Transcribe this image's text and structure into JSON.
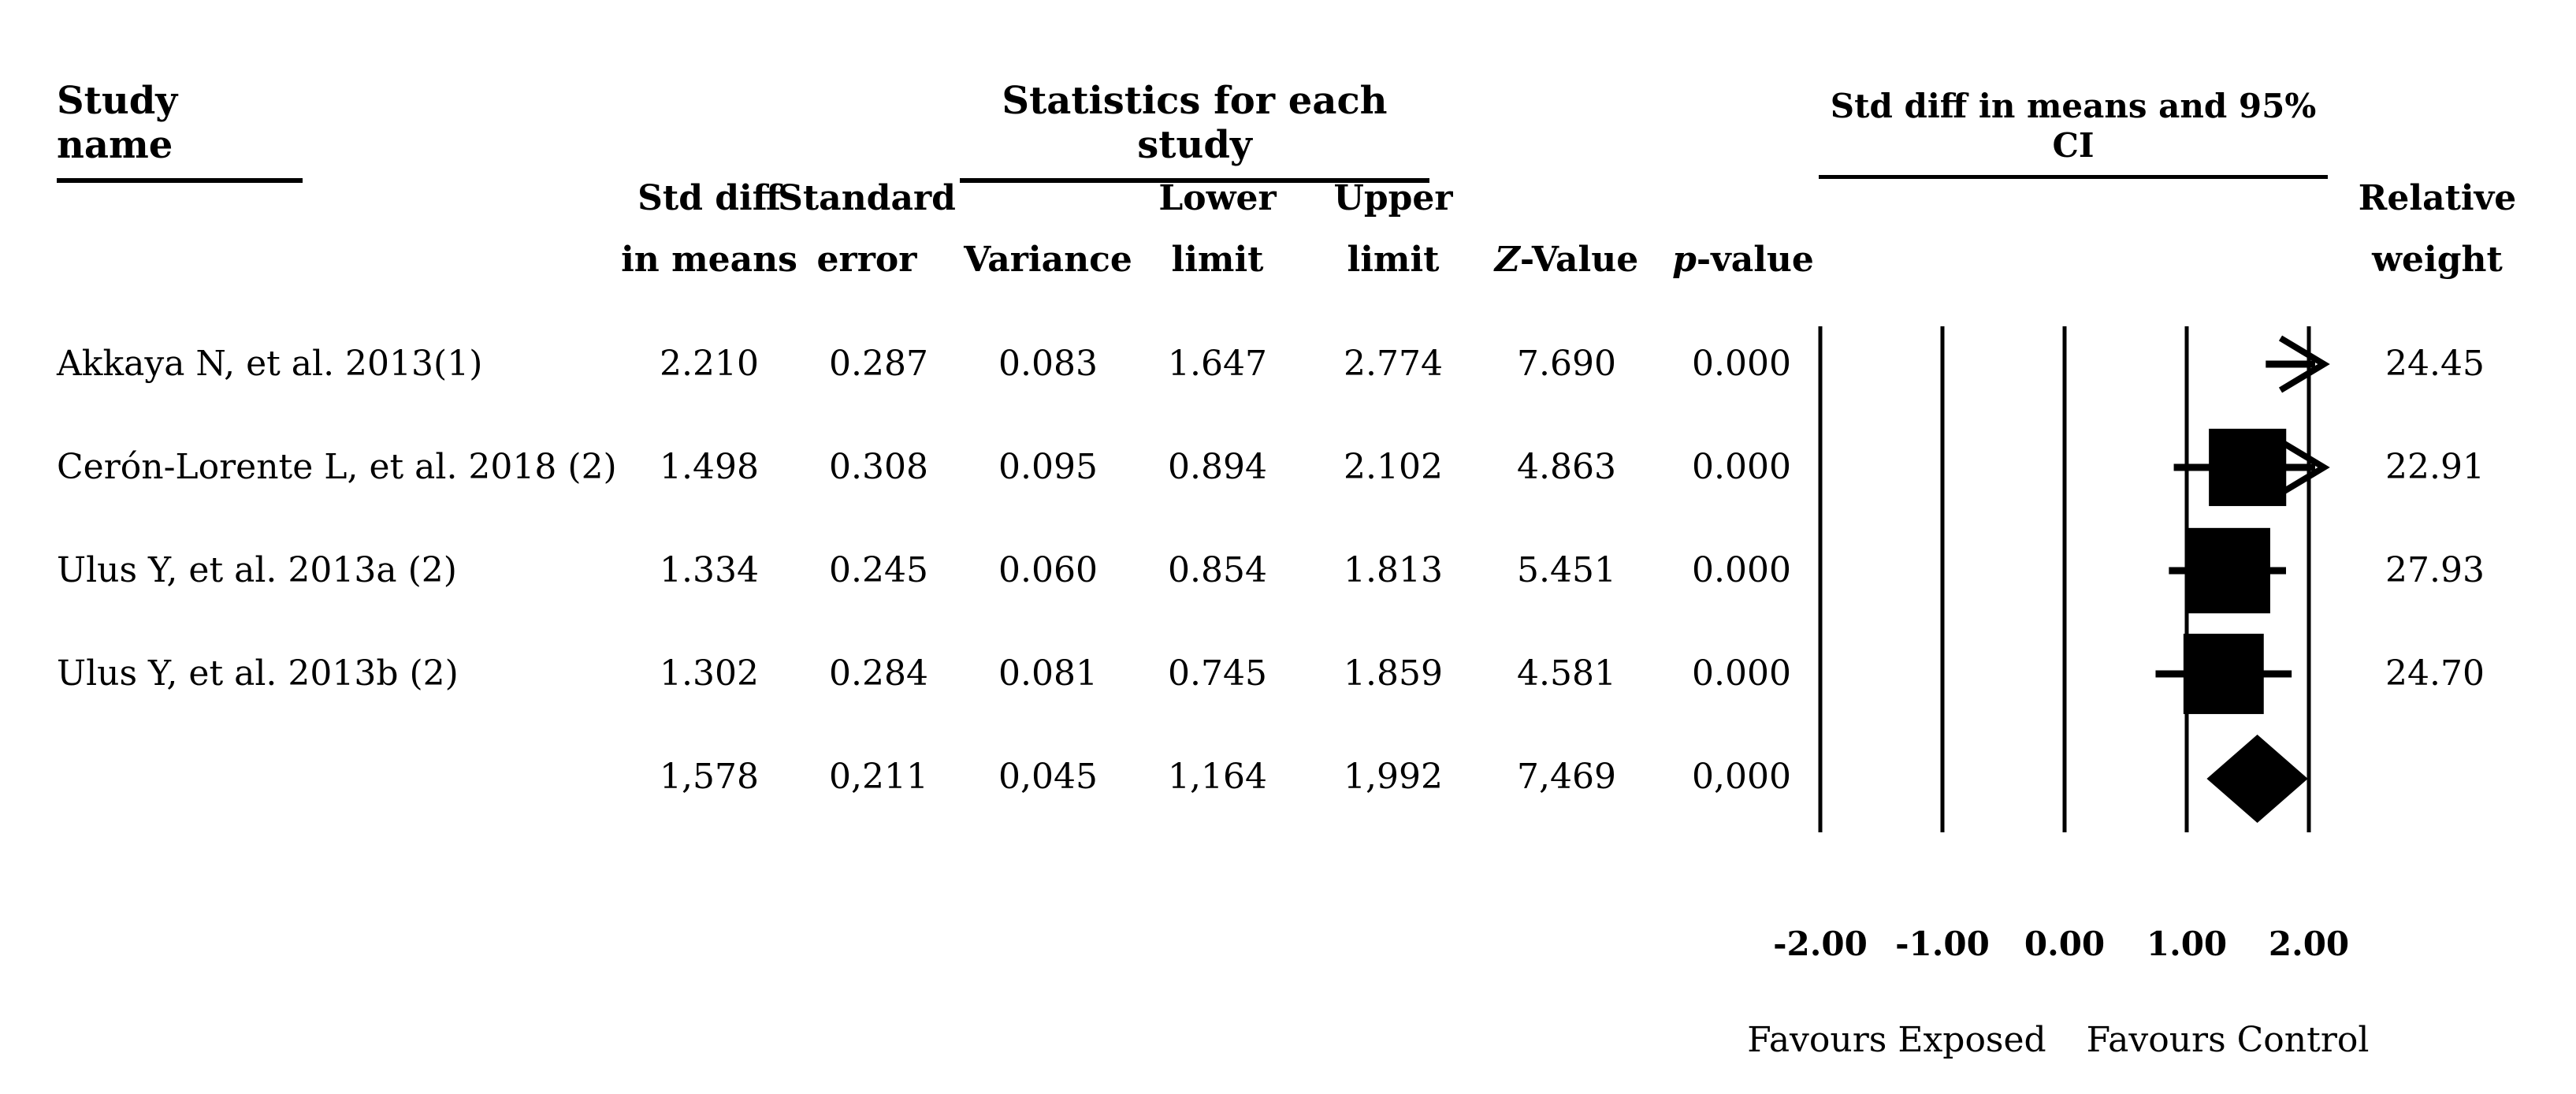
{
  "page": {
    "background": "#ffffff",
    "text_color": "#000000"
  },
  "headers": {
    "study_name": "Study name",
    "statistics": "Statistics for each study",
    "col_std_diff_1": "Std diff",
    "col_std_diff_2": "in means",
    "col_se_1": "Standard",
    "col_se_2": "error",
    "col_variance": "Variance",
    "col_lower_1": "Lower",
    "col_lower_2": "limit",
    "col_upper_1": "Upper",
    "col_upper_2": "limit",
    "col_z_italic": "Z",
    "col_z_rest": "-Value",
    "col_p_italic": "p",
    "col_p_rest": "-value",
    "col_weight_1": "Relative",
    "col_weight_2": "weight"
  },
  "rows": [
    {
      "name": "Akkaya N, et al. 2013(1)",
      "std_diff": "2.210",
      "std_err": "0.287",
      "variance": "0.083",
      "lower": "1.647",
      "upper": "2.774",
      "z": "7.690",
      "p": "0.000",
      "weight": "24.45"
    },
    {
      "name": "Cerón-Lorente L, et al. 2018 (2)",
      "std_diff": "1.498",
      "std_err": "0.308",
      "variance": "0.095",
      "lower": "0.894",
      "upper": "2.102",
      "z": "4.863",
      "p": "0.000",
      "weight": "22.91"
    },
    {
      "name": "Ulus Y, et al. 2013a (2)",
      "std_diff": "1.334",
      "std_err": "0.245",
      "variance": "0.060",
      "lower": "0.854",
      "upper": "1.813",
      "z": "5.451",
      "p": "0.000",
      "weight": "27.93"
    },
    {
      "name": "Ulus Y, et al. 2013b (2)",
      "std_diff": "1.302",
      "std_err": "0.284",
      "variance": "0.081",
      "lower": "0.745",
      "upper": "1.859",
      "z": "4.581",
      "p": "0.000",
      "weight": "24.70"
    }
  ],
  "summary_row": {
    "std_diff": "1,578",
    "std_err": "0,211",
    "variance": "0,045",
    "lower": "1,164",
    "upper": "1,992",
    "z": "7,469",
    "p": "0,000"
  },
  "chart_data": {
    "type": "forest",
    "title": "Std diff in means and 95% CI",
    "xlim": [
      -2,
      2
    ],
    "x_ticks": [
      -2,
      -1,
      0,
      1,
      2
    ],
    "x_tick_labels": [
      "-2.00",
      "-1.00",
      "0.00",
      "1.00",
      "2.00"
    ],
    "favours_left": "Favours Exposed",
    "favours_right": "Favours Control",
    "grid_color": "#000000",
    "marker_color": "#000000",
    "studies": [
      {
        "name": "Akkaya N, et al. 2013(1)",
        "mean": 2.21,
        "lower": 1.647,
        "upper": 2.774,
        "weight": 24.45
      },
      {
        "name": "Cerón-Lorente L, et al. 2018 (2)",
        "mean": 1.498,
        "lower": 0.894,
        "upper": 2.102,
        "weight": 22.91
      },
      {
        "name": "Ulus Y, et al. 2013a (2)",
        "mean": 1.334,
        "lower": 0.854,
        "upper": 1.813,
        "weight": 27.93
      },
      {
        "name": "Ulus Y, et al. 2013b (2)",
        "mean": 1.302,
        "lower": 0.745,
        "upper": 1.859,
        "weight": 24.7
      }
    ],
    "summary": {
      "mean": 1.578,
      "lower": 1.164,
      "upper": 1.992
    }
  }
}
